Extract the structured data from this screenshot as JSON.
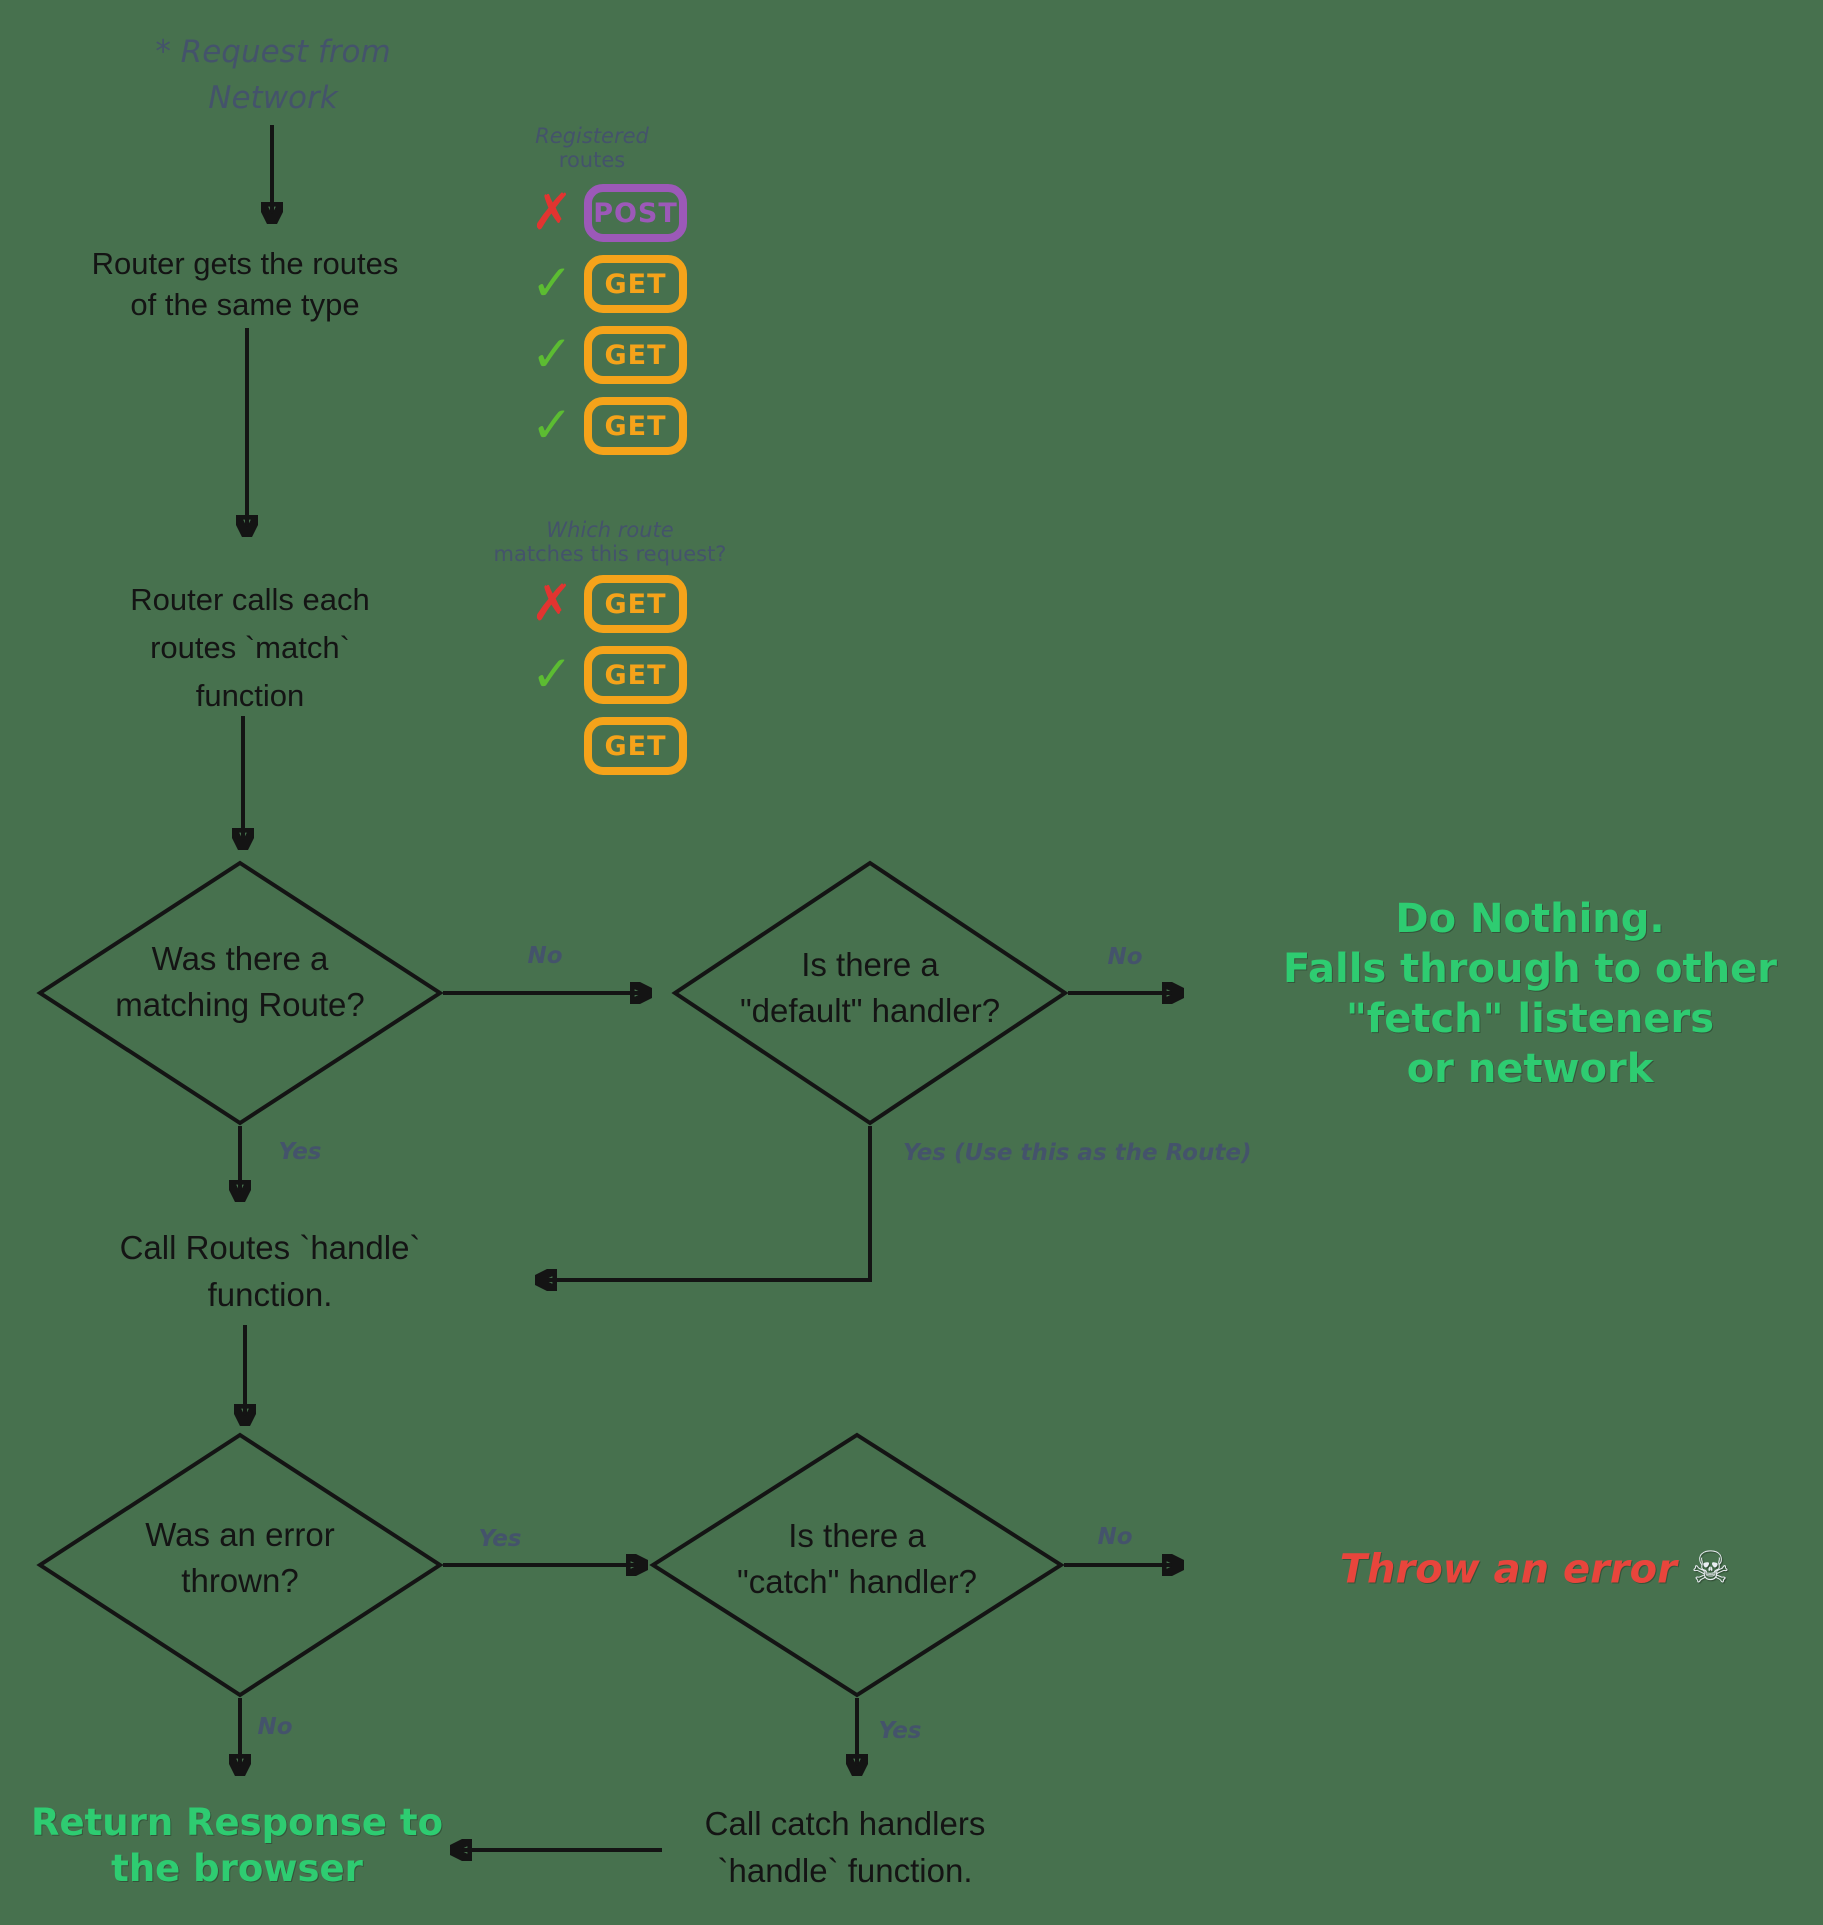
{
  "colors": {
    "background": "#47714E",
    "line": "#141414",
    "slate": "#44536B",
    "purple": "#9C59B8",
    "orange": "#F5A31A",
    "mark_red": "#E23430",
    "mark_green": "#5CBC32",
    "text_green": "#2ECC71",
    "text_red": "#E8453C"
  },
  "nodes": {
    "request_from_network": {
      "line1": "* Request from",
      "line2": "Network"
    },
    "router_gets_routes": {
      "line1": "Router gets the routes",
      "line2": "of the same type"
    },
    "registered_routes_label": {
      "line1": "Registered",
      "line2": "routes"
    },
    "which_route_label": {
      "line1": "Which route",
      "line2": "matches this request?"
    },
    "router_calls_match": {
      "line1": "Router calls each",
      "line2": "routes `match`",
      "line3": "function"
    },
    "was_matching_route": {
      "line1": "Was there a",
      "line2": "matching Route?"
    },
    "is_default_handler": {
      "line1": "Is there a",
      "line2": "\"default\" handler?"
    },
    "do_nothing": {
      "line1": "Do Nothing.",
      "line2": "Falls through to other",
      "line3": "\"fetch\" listeners",
      "line4": "or network"
    },
    "call_routes_handle": {
      "line1": "Call Routes `handle`",
      "line2": "function."
    },
    "was_error_thrown": {
      "line1": "Was an error",
      "line2": "thrown?"
    },
    "is_catch_handler": {
      "line1": "Is there a",
      "line2": "\"catch\" handler?"
    },
    "throw_error": {
      "text": "Throw an error",
      "icon": "skull-and-crossbones",
      "skull": "☠"
    },
    "return_response": {
      "line1": "Return Response to",
      "line2": "the browser"
    },
    "call_catch_handlers": {
      "line1": "Call catch handlers",
      "line2": "`handle` function."
    }
  },
  "edge_labels": {
    "no_matching_route": "No",
    "no_default_handler": "No",
    "yes_matching_route": "Yes",
    "yes_use_route": "Yes (Use this as the Route)",
    "yes_error_thrown": "Yes",
    "no_error_thrown": "No",
    "no_catch_handler": "No",
    "yes_catch_handler": "Yes"
  },
  "badges": {
    "registered": [
      {
        "method": "POST",
        "mark": "cross"
      },
      {
        "method": "GET",
        "mark": "check"
      },
      {
        "method": "GET",
        "mark": "check"
      },
      {
        "method": "GET",
        "mark": "check"
      }
    ],
    "matching": [
      {
        "method": "GET",
        "mark": "cross"
      },
      {
        "method": "GET",
        "mark": "check"
      },
      {
        "method": "GET",
        "mark": "none"
      }
    ]
  }
}
